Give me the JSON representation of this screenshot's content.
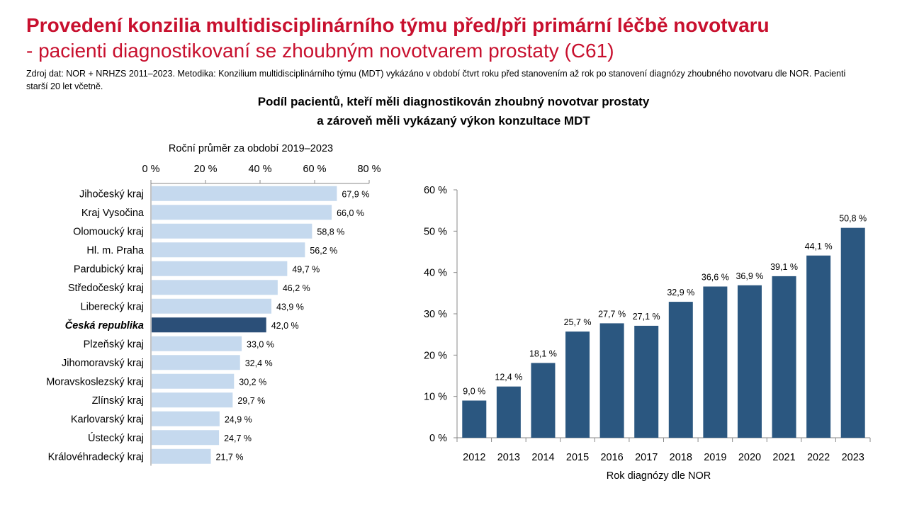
{
  "header": {
    "title_line1": "Provedení konzilia multidisciplinárního týmu před/při primární léčbě novotvaru",
    "title_line2": "- pacienti diagnostikovaní se zhoubným novotvarem prostaty (C61)",
    "source": "Zdroj dat: NOR + NRHZS 2011–2023. Metodika: Konzilium multidisciplinárního týmu (MDT) vykázáno v období čtvrt roku před stanovením až rok po stanovení diagnózy zhoubného novotvaru dle NOR. Pacienti starší 20 let včetně."
  },
  "chart_title": {
    "line1": "Podíl pacientů, kteří měli diagnostikován zhoubný novotvar prostaty",
    "line2": "a zároveň měli vykázaný výkon konzultace MDT"
  },
  "chart_data": [
    {
      "type": "bar",
      "orientation": "horizontal",
      "title": "Roční průměr za období 2019–2023",
      "categories": [
        "Jihočeský kraj",
        "Kraj Vysočina",
        "Olomoucký kraj",
        "Hl. m. Praha",
        "Pardubický kraj",
        "Středočeský kraj",
        "Liberecký kraj",
        "Česká republika",
        "Plzeňský kraj",
        "Jihomoravský kraj",
        "Moravskoslezský kraj",
        "Zlínský kraj",
        "Karlovarský kraj",
        "Ústecký kraj",
        "Královéhradecký kraj"
      ],
      "values": [
        67.9,
        66.0,
        58.8,
        56.2,
        49.7,
        46.2,
        43.9,
        42.0,
        33.0,
        32.4,
        30.2,
        29.7,
        24.9,
        24.7,
        21.7
      ],
      "value_labels": [
        "67,9 %",
        "66,0 %",
        "58,8 %",
        "56,2 %",
        "49,7 %",
        "46,2 %",
        "43,9 %",
        "42,0 %",
        "33,0 %",
        "32,4 %",
        "30,2 %",
        "29,7 %",
        "24,9 %",
        "24,7 %",
        "21,7 %"
      ],
      "highlight": "Česká republika",
      "xlim": [
        0,
        80
      ],
      "ticks": [
        0,
        20,
        40,
        60,
        80
      ],
      "tick_labels": [
        "0 %",
        "20 %",
        "40 %",
        "60 %",
        "80 %"
      ],
      "axis_position": "top",
      "grid": false,
      "colors": {
        "bar": "#c5d9ee",
        "highlight": "#2b4f78"
      }
    },
    {
      "type": "bar",
      "orientation": "vertical",
      "xlabel": "Rok diagnózy dle NOR",
      "categories": [
        "2012",
        "2013",
        "2014",
        "2015",
        "2016",
        "2017",
        "2018",
        "2019",
        "2020",
        "2021",
        "2022",
        "2023"
      ],
      "values": [
        9.0,
        12.4,
        18.1,
        25.7,
        27.7,
        27.1,
        32.9,
        36.6,
        36.9,
        39.1,
        44.1,
        50.8
      ],
      "value_labels": [
        "9,0 %",
        "12,4 %",
        "18,1 %",
        "25,7 %",
        "27,7 %",
        "27,1 %",
        "32,9 %",
        "36,6 %",
        "36,9 %",
        "39,1 %",
        "44,1 %",
        "50,8 %"
      ],
      "ylim": [
        0,
        60
      ],
      "ticks": [
        0,
        10,
        20,
        30,
        40,
        50,
        60
      ],
      "tick_labels": [
        "0 %",
        "10 %",
        "20 %",
        "30 %",
        "40 %",
        "50 %",
        "60 %"
      ],
      "grid": false,
      "colors": {
        "bar": "#2b5780"
      }
    }
  ]
}
